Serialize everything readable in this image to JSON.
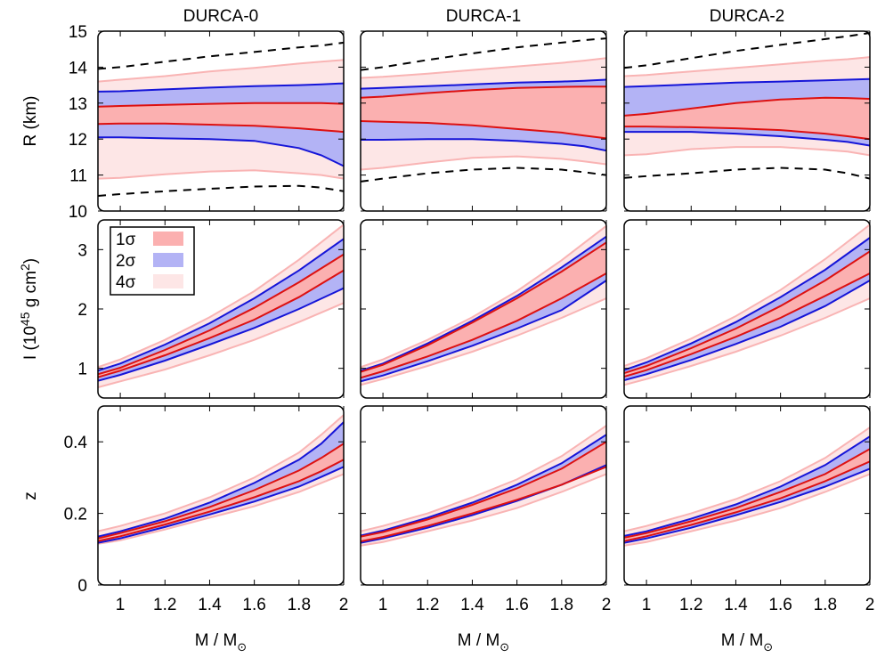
{
  "figure": {
    "x_label_main": "M / M",
    "x_label_sub": "⊙",
    "y_labels": {
      "R": "R  (km)",
      "I_main": "I (10",
      "I_exp": "45",
      "I_rest": " g cm",
      "I_sq": "2",
      "I_close": ")",
      "z": "z"
    },
    "legend": [
      {
        "label": "1σ",
        "color": "#fbb0b0"
      },
      {
        "label": "2σ",
        "color": "#b3b3f5"
      },
      {
        "label": "4σ",
        "color": "#fde6e6"
      }
    ],
    "colors": {
      "band_4sigma": "#fde6e6",
      "band_4sigma_edge": "#f9b4b4",
      "band_2sigma": "#b3b3f5",
      "band_1sigma": "#fbb0b0",
      "line_2sigma": "#1515d8",
      "line_1sigma": "#dd1111",
      "dashed": "#000000"
    }
  },
  "chart_data": [
    {
      "type": "area",
      "column": "DURCA-0",
      "row": "R",
      "title": "DURCA-0",
      "xlim": [
        0.9,
        2.0
      ],
      "ylim": [
        10,
        15
      ],
      "yticks": [
        "10",
        "11",
        "12",
        "13",
        "14",
        "15"
      ],
      "xticks": [],
      "x": [
        0.9,
        1.0,
        1.2,
        1.4,
        1.6,
        1.8,
        1.9,
        2.0
      ],
      "dashed_upper": [
        13.95,
        14.0,
        14.15,
        14.3,
        14.42,
        14.55,
        14.6,
        14.68
      ],
      "dashed_lower": [
        10.42,
        10.47,
        10.55,
        10.62,
        10.68,
        10.7,
        10.65,
        10.55
      ],
      "band_4sigma": {
        "upper": [
          13.6,
          13.65,
          13.75,
          13.88,
          13.98,
          14.1,
          14.15,
          14.2
        ],
        "lower": [
          10.9,
          10.92,
          11.02,
          11.1,
          11.13,
          11.05,
          11.0,
          10.9
        ]
      },
      "band_2sigma": {
        "upper": [
          13.32,
          13.33,
          13.38,
          13.43,
          13.47,
          13.5,
          13.52,
          13.55
        ],
        "lower": [
          12.05,
          12.05,
          12.02,
          12.0,
          11.95,
          11.75,
          11.55,
          11.25
        ]
      },
      "band_1sigma": {
        "upper": [
          12.9,
          12.92,
          12.95,
          12.98,
          13.0,
          13.0,
          13.0,
          12.98
        ],
        "lower": [
          12.42,
          12.43,
          12.43,
          12.4,
          12.37,
          12.3,
          12.25,
          12.2
        ]
      }
    },
    {
      "type": "area",
      "column": "DURCA-1",
      "row": "R",
      "title": "DURCA-1",
      "xlim": [
        0.9,
        2.0
      ],
      "ylim": [
        10,
        15
      ],
      "yticks": [],
      "xticks": [],
      "x": [
        0.9,
        1.0,
        1.2,
        1.4,
        1.6,
        1.8,
        1.9,
        2.0
      ],
      "dashed_upper": [
        13.92,
        14.0,
        14.2,
        14.38,
        14.55,
        14.68,
        14.75,
        14.8
      ],
      "dashed_lower": [
        10.82,
        10.9,
        11.05,
        11.15,
        11.2,
        11.15,
        11.08,
        11.0
      ],
      "band_4sigma": {
        "upper": [
          13.7,
          13.73,
          13.82,
          13.92,
          14.02,
          14.12,
          14.18,
          14.25
        ],
        "lower": [
          11.15,
          11.2,
          11.35,
          11.48,
          11.52,
          11.45,
          11.38,
          11.3
        ]
      },
      "band_2sigma": {
        "upper": [
          13.4,
          13.42,
          13.47,
          13.52,
          13.57,
          13.6,
          13.62,
          13.65
        ],
        "lower": [
          11.98,
          11.98,
          12.0,
          12.0,
          11.95,
          11.87,
          11.8,
          11.68
        ]
      },
      "band_1sigma": {
        "upper": [
          13.15,
          13.18,
          13.28,
          13.36,
          13.42,
          13.45,
          13.46,
          13.46
        ],
        "lower": [
          12.5,
          12.48,
          12.45,
          12.38,
          12.28,
          12.18,
          12.1,
          12.02
        ]
      }
    },
    {
      "type": "area",
      "column": "DURCA-2",
      "row": "R",
      "title": "DURCA-2",
      "xlim": [
        0.9,
        2.0
      ],
      "ylim": [
        10,
        15
      ],
      "yticks": [],
      "xticks": [],
      "x": [
        0.9,
        1.0,
        1.2,
        1.4,
        1.6,
        1.8,
        1.9,
        2.0
      ],
      "dashed_upper": [
        13.98,
        14.05,
        14.25,
        14.45,
        14.62,
        14.78,
        14.86,
        14.95
      ],
      "dashed_lower": [
        10.92,
        10.97,
        11.05,
        11.15,
        11.2,
        11.15,
        11.05,
        10.9
      ],
      "band_4sigma": {
        "upper": [
          13.75,
          13.78,
          13.88,
          13.98,
          14.08,
          14.18,
          14.22,
          14.28
        ],
        "lower": [
          11.55,
          11.58,
          11.72,
          11.78,
          11.78,
          11.7,
          11.65,
          11.55
        ],
        "lower_at_2": 11.55
      },
      "band_2sigma": {
        "upper": [
          13.45,
          13.47,
          13.52,
          13.57,
          13.6,
          13.63,
          13.65,
          13.67
        ],
        "lower": [
          12.2,
          12.2,
          12.2,
          12.15,
          12.08,
          11.98,
          11.92,
          11.82
        ]
      },
      "band_1sigma": {
        "upper": [
          12.65,
          12.7,
          12.85,
          13.0,
          13.1,
          13.15,
          13.14,
          13.12
        ],
        "lower": [
          12.35,
          12.35,
          12.33,
          12.3,
          12.25,
          12.15,
          12.08,
          12.0
        ]
      }
    },
    {
      "type": "area",
      "column": "DURCA-0",
      "row": "I",
      "xlim": [
        0.9,
        2.0
      ],
      "ylim": [
        0.5,
        3.5
      ],
      "yticks": [
        "1",
        "2",
        "3"
      ],
      "xticks": [],
      "x": [
        0.9,
        1.0,
        1.2,
        1.4,
        1.6,
        1.8,
        2.0
      ],
      "band_4sigma": {
        "upper": [
          1.02,
          1.15,
          1.48,
          1.86,
          2.3,
          2.83,
          3.42
        ],
        "lower": [
          0.68,
          0.78,
          0.98,
          1.22,
          1.48,
          1.78,
          2.1
        ]
      },
      "band_2sigma": {
        "upper": [
          0.96,
          1.08,
          1.4,
          1.76,
          2.18,
          2.65,
          3.18
        ],
        "lower": [
          0.79,
          0.89,
          1.13,
          1.4,
          1.68,
          2.0,
          2.35
        ]
      },
      "band_1sigma": {
        "upper": [
          0.9,
          1.01,
          1.31,
          1.64,
          2.02,
          2.45,
          2.92
        ],
        "lower": [
          0.85,
          0.96,
          1.22,
          1.51,
          1.82,
          2.2,
          2.65
        ]
      }
    },
    {
      "type": "area",
      "column": "DURCA-1",
      "row": "I",
      "xlim": [
        0.9,
        2.0
      ],
      "ylim": [
        0.5,
        3.5
      ],
      "yticks": [],
      "xticks": [],
      "x": [
        0.9,
        1.0,
        1.2,
        1.4,
        1.6,
        1.8,
        2.0
      ],
      "band_4sigma": {
        "upper": [
          1.02,
          1.15,
          1.48,
          1.86,
          2.3,
          2.82,
          3.4
        ],
        "lower": [
          0.72,
          0.82,
          1.04,
          1.28,
          1.55,
          1.85,
          2.18
        ]
      },
      "band_2sigma": {
        "upper": [
          0.96,
          1.08,
          1.42,
          1.8,
          2.22,
          2.7,
          3.22
        ],
        "lower": [
          0.78,
          0.88,
          1.12,
          1.38,
          1.67,
          1.98,
          2.48
        ]
      },
      "band_1sigma": {
        "upper": [
          0.94,
          1.06,
          1.39,
          1.77,
          2.18,
          2.63,
          3.12
        ],
        "lower": [
          0.84,
          0.95,
          1.2,
          1.48,
          1.8,
          2.18,
          2.6
        ]
      }
    },
    {
      "type": "area",
      "column": "DURCA-2",
      "row": "I",
      "xlim": [
        0.9,
        2.0
      ],
      "ylim": [
        0.5,
        3.5
      ],
      "yticks": [],
      "xticks": [],
      "x": [
        0.9,
        1.0,
        1.2,
        1.4,
        1.6,
        1.8,
        2.0
      ],
      "band_4sigma": {
        "upper": [
          1.04,
          1.17,
          1.5,
          1.88,
          2.32,
          2.84,
          3.42
        ],
        "lower": [
          0.72,
          0.82,
          1.04,
          1.28,
          1.55,
          1.85,
          2.18
        ]
      },
      "band_2sigma": {
        "upper": [
          0.97,
          1.1,
          1.42,
          1.78,
          2.2,
          2.66,
          3.2
        ],
        "lower": [
          0.8,
          0.9,
          1.14,
          1.41,
          1.7,
          2.05,
          2.48
        ]
      },
      "band_1sigma": {
        "upper": [
          0.92,
          1.04,
          1.34,
          1.67,
          2.05,
          2.48,
          2.97
        ],
        "lower": [
          0.86,
          0.97,
          1.24,
          1.53,
          1.85,
          2.22,
          2.6
        ]
      }
    },
    {
      "type": "area",
      "column": "DURCA-0",
      "row": "z",
      "xlim": [
        0.9,
        2.0
      ],
      "ylim": [
        0,
        0.5
      ],
      "yticks": [
        "0",
        "0.2",
        "0.4"
      ],
      "xticks": [
        "1",
        "1.2",
        "1.4",
        "1.6",
        "1.8",
        "2"
      ],
      "xlabel": "M / M⊙",
      "x": [
        0.9,
        1.0,
        1.2,
        1.4,
        1.6,
        1.8,
        1.9,
        2.0
      ],
      "band_4sigma": {
        "upper": [
          0.15,
          0.165,
          0.2,
          0.245,
          0.3,
          0.37,
          0.42,
          0.475
        ],
        "lower": [
          0.115,
          0.125,
          0.155,
          0.188,
          0.22,
          0.26,
          0.285,
          0.31
        ]
      },
      "band_2sigma": {
        "upper": [
          0.135,
          0.15,
          0.185,
          0.23,
          0.285,
          0.35,
          0.395,
          0.455
        ],
        "lower": [
          0.118,
          0.13,
          0.162,
          0.197,
          0.233,
          0.275,
          0.302,
          0.33
        ]
      },
      "band_1sigma": {
        "upper": [
          0.13,
          0.145,
          0.178,
          0.218,
          0.265,
          0.32,
          0.355,
          0.395
        ],
        "lower": [
          0.123,
          0.136,
          0.169,
          0.205,
          0.245,
          0.29,
          0.318,
          0.35
        ]
      }
    },
    {
      "type": "area",
      "column": "DURCA-1",
      "row": "z",
      "xlim": [
        0.9,
        2.0
      ],
      "ylim": [
        0,
        0.5
      ],
      "yticks": [],
      "xticks": [
        "1",
        "1.2",
        "1.4",
        "1.6",
        "1.8",
        "2"
      ],
      "xlabel": "M / M⊙",
      "x": [
        0.9,
        1.0,
        1.2,
        1.4,
        1.6,
        1.8,
        2.0
      ],
      "band_4sigma": {
        "upper": [
          0.15,
          0.165,
          0.2,
          0.245,
          0.295,
          0.36,
          0.445
        ],
        "lower": [
          0.11,
          0.12,
          0.15,
          0.18,
          0.215,
          0.26,
          0.31
        ]
      },
      "band_2sigma": {
        "upper": [
          0.138,
          0.152,
          0.188,
          0.23,
          0.28,
          0.34,
          0.42
        ],
        "lower": [
          0.118,
          0.13,
          0.16,
          0.195,
          0.235,
          0.28,
          0.335
        ]
      },
      "band_1sigma": {
        "upper": [
          0.135,
          0.148,
          0.183,
          0.224,
          0.27,
          0.325,
          0.4
        ],
        "lower": [
          0.122,
          0.134,
          0.165,
          0.2,
          0.238,
          0.28,
          0.33
        ]
      }
    },
    {
      "type": "area",
      "column": "DURCA-2",
      "row": "z",
      "xlim": [
        0.9,
        2.0
      ],
      "ylim": [
        0,
        0.5
      ],
      "yticks": [],
      "xticks": [
        "1",
        "1.2",
        "1.4",
        "1.6",
        "1.8",
        "2"
      ],
      "xlabel": "M / M⊙",
      "x": [
        0.9,
        1.0,
        1.2,
        1.4,
        1.6,
        1.8,
        2.0
      ],
      "band_4sigma": {
        "upper": [
          0.15,
          0.165,
          0.2,
          0.24,
          0.29,
          0.355,
          0.44
        ],
        "lower": [
          0.11,
          0.12,
          0.15,
          0.18,
          0.215,
          0.26,
          0.31
        ]
      },
      "band_2sigma": {
        "upper": [
          0.137,
          0.15,
          0.185,
          0.225,
          0.275,
          0.335,
          0.415
        ],
        "lower": [
          0.118,
          0.13,
          0.16,
          0.195,
          0.232,
          0.275,
          0.325
        ]
      },
      "band_1sigma": {
        "upper": [
          0.132,
          0.145,
          0.178,
          0.215,
          0.26,
          0.31,
          0.38
        ],
        "lower": [
          0.123,
          0.136,
          0.168,
          0.203,
          0.242,
          0.29,
          0.345
        ]
      }
    }
  ]
}
